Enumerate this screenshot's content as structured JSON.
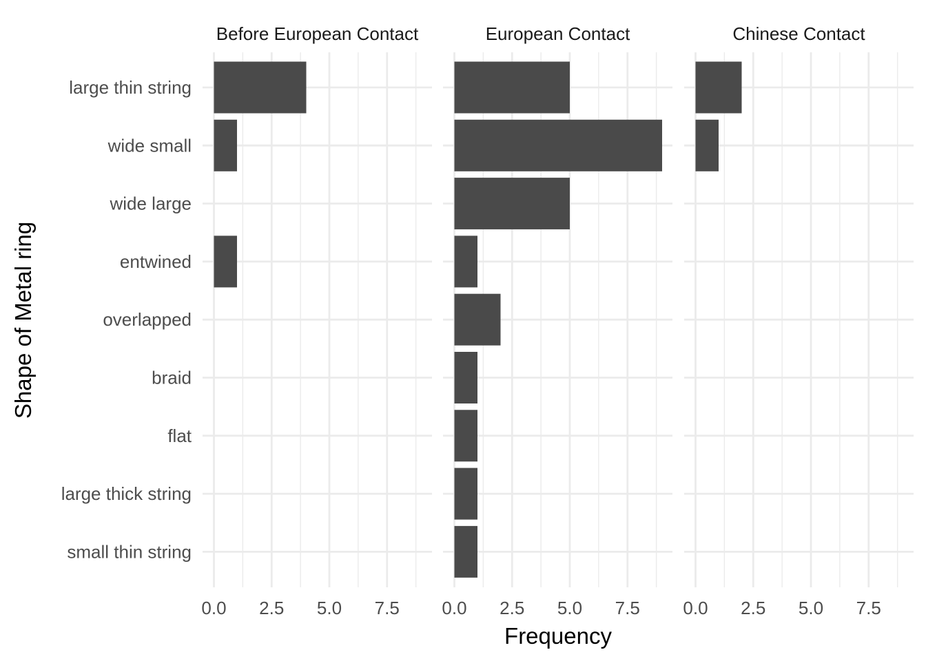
{
  "chart_data": {
    "type": "bar",
    "orientation": "horizontal",
    "xlabel": "Frequency",
    "ylabel": "Shape of Metal ring",
    "categories": [
      "large thin string",
      "wide small",
      "wide large",
      "entwined",
      "overlapped",
      "braid",
      "flat",
      "large thick string",
      "small thin string"
    ],
    "x_ticks": [
      "0.0",
      "2.5",
      "5.0",
      "7.5"
    ],
    "xlim": [
      0,
      9.4
    ],
    "grid": true,
    "bar_color": "#4a4a4a",
    "grid_color": "#ebebeb",
    "facets": [
      {
        "title": "Before European Contact",
        "values": [
          4,
          1,
          0,
          1,
          0,
          0,
          0,
          0,
          0
        ]
      },
      {
        "title": "European Contact",
        "values": [
          5,
          9,
          5,
          1,
          2,
          1,
          1,
          1,
          1
        ]
      },
      {
        "title": "Chinese Contact",
        "values": [
          2,
          1,
          0,
          0,
          0,
          0,
          0,
          0,
          0
        ]
      }
    ]
  }
}
